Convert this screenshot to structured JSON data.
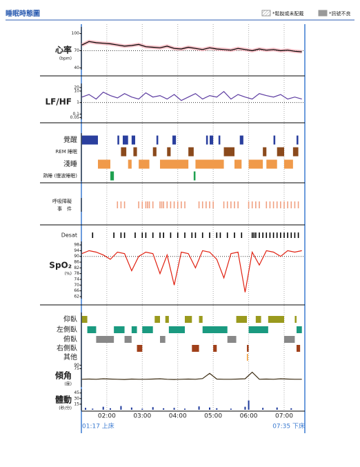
{
  "header": {
    "title": "睡眠時態圖",
    "legend": [
      {
        "label": "*鬆脫或未配戴",
        "style": "hatch"
      },
      {
        "label": "*訊號不良",
        "style": "solid"
      }
    ]
  },
  "time_axis": {
    "xlim": [
      1.2833,
      7.5833
    ],
    "xticks": [
      {
        "value": 2,
        "label": "02:00"
      },
      {
        "value": 3,
        "label": "03:00"
      },
      {
        "value": 4,
        "label": "04:00"
      },
      {
        "value": 5,
        "label": "05:00"
      },
      {
        "value": 6,
        "label": "06:00"
      },
      {
        "value": 7,
        "label": "07:00"
      }
    ],
    "start_label": "01:17 上床",
    "end_label": "07:35 下床"
  },
  "chart_data": [
    {
      "type": "line",
      "label": "心率",
      "unit": "(bpm)",
      "color": "#000000",
      "band_color": "#f4a6b0",
      "x": [
        1.3,
        1.5,
        1.7,
        1.9,
        2.1,
        2.3,
        2.5,
        2.7,
        2.9,
        3.1,
        3.3,
        3.5,
        3.7,
        3.9,
        4.1,
        4.3,
        4.5,
        4.7,
        4.9,
        5.1,
        5.3,
        5.5,
        5.7,
        5.9,
        6.1,
        6.3,
        6.5,
        6.7,
        6.9,
        7.1,
        7.3,
        7.5
      ],
      "values": [
        80,
        86,
        84,
        83,
        82,
        80,
        78,
        79,
        81,
        77,
        76,
        75,
        78,
        74,
        73,
        76,
        74,
        72,
        75,
        73,
        72,
        71,
        74,
        72,
        70,
        73,
        71,
        72,
        70,
        71,
        69,
        68
      ],
      "ylim": [
        38,
        108
      ],
      "yticks": [
        40,
        70,
        100
      ],
      "reference_line": 70
    },
    {
      "type": "line",
      "label": "LF/HF",
      "color": "#5b3aa0",
      "log": true,
      "x": [
        1.3,
        1.5,
        1.7,
        1.9,
        2.1,
        2.3,
        2.5,
        2.7,
        2.9,
        3.1,
        3.3,
        3.5,
        3.7,
        3.9,
        4.1,
        4.3,
        4.5,
        4.7,
        4.9,
        5.1,
        5.3,
        5.5,
        5.7,
        5.9,
        6.1,
        6.3,
        6.5,
        6.7,
        6.9,
        7.1,
        7.3,
        7.5
      ],
      "values": [
        3,
        5,
        2,
        8,
        4,
        2.5,
        6,
        3,
        2,
        7,
        3,
        4,
        2,
        5,
        1.5,
        3,
        6,
        2,
        4,
        3,
        9,
        2,
        5,
        3,
        2,
        6,
        4,
        3,
        5,
        2,
        3,
        2
      ],
      "ylim": [
        0.04,
        30
      ],
      "yticks": [
        0.05,
        0.1,
        1,
        10,
        20
      ],
      "reference_line": 1
    },
    {
      "type": "timeline",
      "rows": [
        {
          "label": "覺醒",
          "color": "#2a3f9e",
          "intervals": [
            [
              1.3,
              1.75
            ],
            [
              2.3,
              2.35
            ],
            [
              2.45,
              2.6
            ],
            [
              2.7,
              2.8
            ],
            [
              3.4,
              3.45
            ],
            [
              3.85,
              3.95
            ],
            [
              4.8,
              4.85
            ],
            [
              4.9,
              5.0
            ],
            [
              5.15,
              5.2
            ],
            [
              5.75,
              5.85
            ],
            [
              6.7,
              6.75
            ],
            [
              7.35,
              7.4
            ]
          ]
        },
        {
          "label": "REM 睡眠",
          "color": "#8b4a1c",
          "intervals": [
            [
              2.4,
              2.55
            ],
            [
              2.75,
              2.85
            ],
            [
              3.3,
              3.4
            ],
            [
              3.7,
              3.8
            ],
            [
              4.3,
              4.45
            ],
            [
              5.3,
              5.6
            ],
            [
              6.4,
              6.5
            ],
            [
              6.8,
              7.0
            ],
            [
              7.25,
              7.4
            ]
          ]
        },
        {
          "label": "淺睡",
          "color": "#f09a4a",
          "intervals": [
            [
              1.75,
              2.1
            ],
            [
              2.6,
              2.7
            ],
            [
              2.9,
              3.2
            ],
            [
              3.5,
              4.3
            ],
            [
              4.5,
              5.3
            ],
            [
              5.6,
              5.8
            ],
            [
              6.0,
              6.4
            ],
            [
              6.5,
              6.8
            ],
            [
              7.0,
              7.25
            ]
          ]
        },
        {
          "label": "熟睡 (慢波睡眠)",
          "color": "#1fa050",
          "intervals": [
            [
              2.1,
              2.2
            ],
            [
              4.45,
              4.5
            ]
          ]
        }
      ]
    },
    {
      "type": "events",
      "label": [
        "呼吸障礙",
        "事　件"
      ],
      "color": "#f0a080",
      "times": [
        2.3,
        2.4,
        2.5,
        2.9,
        3.0,
        3.1,
        3.15,
        3.2,
        3.3,
        3.5,
        3.55,
        3.6,
        3.7,
        3.8,
        3.9,
        4.0,
        4.1,
        4.2,
        4.6,
        4.7,
        4.8,
        4.9,
        5.0,
        5.3,
        5.4,
        5.5,
        5.6,
        5.7,
        6.0,
        6.1,
        6.2,
        6.3,
        6.5,
        6.6,
        6.7,
        6.8,
        6.9,
        7.0,
        7.1,
        7.2,
        7.3,
        7.4
      ]
    },
    {
      "type": "line",
      "label": "SpO₂",
      "unit": "(%)",
      "color": "#e02010",
      "desat": {
        "label": "Desat",
        "color": "#000000",
        "times": [
          1.6,
          2.2,
          2.4,
          2.5,
          2.8,
          3.0,
          3.1,
          3.3,
          3.5,
          3.6,
          3.8,
          4.0,
          4.2,
          4.4,
          4.5,
          4.7,
          4.9,
          5.1,
          5.2,
          5.4,
          5.6,
          5.8,
          6.1,
          6.15,
          6.2,
          6.3,
          6.4,
          6.5,
          6.6,
          6.7,
          6.8,
          6.9,
          7.0,
          7.1,
          7.2,
          7.3,
          7.4
        ]
      },
      "x": [
        1.3,
        1.5,
        1.7,
        1.9,
        2.1,
        2.3,
        2.5,
        2.7,
        2.9,
        3.1,
        3.3,
        3.5,
        3.7,
        3.9,
        4.1,
        4.3,
        4.5,
        4.7,
        4.9,
        5.1,
        5.3,
        5.5,
        5.7,
        5.9,
        6.1,
        6.3,
        6.5,
        6.7,
        6.9,
        7.1,
        7.3,
        7.5
      ],
      "values": [
        92,
        94,
        93,
        91,
        88,
        93,
        92,
        80,
        90,
        93,
        92,
        78,
        91,
        70,
        93,
        92,
        82,
        94,
        93,
        88,
        75,
        92,
        93,
        65,
        93,
        84,
        94,
        93,
        90,
        94,
        93,
        94
      ],
      "ylim": [
        61,
        99
      ],
      "yticks": [
        62,
        66,
        70,
        74,
        78,
        82,
        86,
        90,
        94,
        98
      ],
      "reference_line": 90
    },
    {
      "type": "timeline",
      "rows": [
        {
          "label": "仰臥",
          "color": "#9a9a1e",
          "intervals": [
            [
              1.3,
              1.45
            ],
            [
              3.35,
              3.5
            ],
            [
              3.65,
              3.75
            ],
            [
              4.2,
              4.4
            ],
            [
              4.6,
              4.7
            ],
            [
              5.65,
              5.95
            ],
            [
              6.2,
              6.35
            ],
            [
              6.55,
              7.0
            ],
            [
              7.3,
              7.35
            ]
          ]
        },
        {
          "label": "左側臥",
          "color": "#1a9a80",
          "intervals": [
            [
              1.45,
              1.7
            ],
            [
              2.2,
              2.5
            ],
            [
              2.7,
              2.85
            ],
            [
              3.0,
              3.3
            ],
            [
              3.75,
              4.2
            ],
            [
              4.7,
              5.4
            ],
            [
              6.0,
              6.55
            ],
            [
              7.35,
              7.5
            ]
          ]
        },
        {
          "label": "俯臥",
          "color": "#888888",
          "intervals": [
            [
              1.7,
              2.2
            ],
            [
              2.5,
              2.7
            ],
            [
              3.5,
              3.65
            ],
            [
              5.4,
              5.65
            ],
            [
              7.0,
              7.3
            ]
          ]
        },
        {
          "label": "右側臥",
          "color": "#a0401a",
          "intervals": [
            [
              2.85,
              3.0
            ],
            [
              4.4,
              4.6
            ],
            [
              5.0,
              5.1
            ],
            [
              5.95,
              6.0
            ],
            [
              7.35,
              7.45
            ]
          ]
        },
        {
          "label": "其他",
          "color": "#f09a30",
          "intervals": [
            [
              5.95,
              5.97
            ]
          ]
        }
      ]
    },
    {
      "type": "line",
      "label": "傾角",
      "unit": "(度)",
      "color": "#3a2a10",
      "x": [
        1.3,
        1.5,
        1.7,
        1.9,
        2.1,
        2.3,
        2.5,
        2.7,
        2.9,
        3.1,
        3.3,
        3.5,
        3.7,
        3.9,
        4.1,
        4.3,
        4.5,
        4.7,
        4.9,
        5.1,
        5.3,
        5.5,
        5.7,
        5.9,
        6.1,
        6.3,
        6.5,
        6.7,
        6.9,
        7.1,
        7.3,
        7.5
      ],
      "values": [
        30,
        31,
        30,
        32,
        31,
        30,
        29,
        31,
        30,
        30,
        31,
        32,
        30,
        29,
        30,
        31,
        30,
        33,
        55,
        31,
        30,
        30,
        31,
        32,
        60,
        30,
        31,
        30,
        32,
        31,
        30,
        30
      ],
      "ylim": [
        0,
        100
      ],
      "yticks": [
        75,
        90
      ]
    },
    {
      "type": "bar",
      "label": "體動",
      "unit": "(秒/分)",
      "color": "#1f3a9a",
      "x": [
        1.4,
        1.6,
        1.9,
        2.1,
        2.4,
        2.7,
        3.0,
        3.3,
        3.6,
        3.9,
        4.2,
        4.6,
        4.9,
        5.1,
        5.5,
        5.9,
        6.0,
        6.4,
        6.8,
        7.2
      ],
      "values": [
        5,
        3,
        8,
        4,
        10,
        6,
        3,
        7,
        4,
        5,
        3,
        9,
        6,
        4,
        3,
        8,
        25,
        5,
        6,
        4
      ],
      "ylim": [
        0,
        50
      ],
      "yticks": [
        15,
        30,
        45
      ]
    }
  ]
}
